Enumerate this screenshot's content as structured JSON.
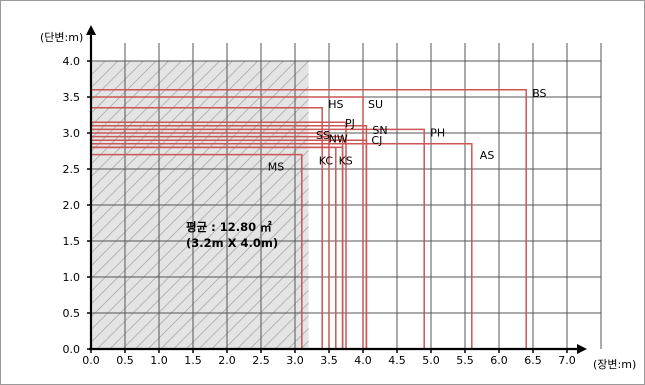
{
  "chart_data": {
    "type": "area",
    "xlabel": "(장변:m)",
    "ylabel": "(단변:m)",
    "xlim": [
      0,
      7.5
    ],
    "ylim": [
      0,
      4.25
    ],
    "x_ticks": [
      "0.0",
      "0.5",
      "1.0",
      "1.5",
      "2.0",
      "2.5",
      "3.0",
      "3.5",
      "4.0",
      "4.5",
      "5.0",
      "5.5",
      "6.0",
      "6.5",
      "7.0"
    ],
    "y_ticks": [
      "0.0",
      "0.5",
      "1.0",
      "1.5",
      "2.0",
      "2.5",
      "3.0",
      "3.5",
      "4.0"
    ],
    "grid": true,
    "series": [
      {
        "name": "BS",
        "x": 6.4,
        "y": 3.6
      },
      {
        "name": "SU",
        "x": 4.0,
        "y": 3.5
      },
      {
        "name": "HS",
        "x": 3.4,
        "y": 3.35
      },
      {
        "name": "PJ",
        "x": 3.75,
        "y": 3.15
      },
      {
        "name": "SN",
        "x": 4.05,
        "y": 3.1
      },
      {
        "name": "PH",
        "x": 4.9,
        "y": 3.05
      },
      {
        "name": "SS",
        "x": 3.5,
        "y": 3.0
      },
      {
        "name": "NW",
        "x": 3.7,
        "y": 2.95
      },
      {
        "name": "CJ",
        "x": 4.05,
        "y": 2.9
      },
      {
        "name": "AS",
        "x": 5.6,
        "y": 2.85
      },
      {
        "name": "KC",
        "x": 3.6,
        "y": 2.8
      },
      {
        "name": "KS",
        "x": 3.7,
        "y": 2.8
      },
      {
        "name": "MS",
        "x": 3.1,
        "y": 2.7
      }
    ],
    "average": {
      "x": 3.2,
      "y": 4.0
    },
    "annotation": {
      "line1": "평균 : 12.80 ㎡",
      "line2": "(3.2m  X 4.0m)"
    },
    "colors": {
      "series": "#cc5555",
      "grid": "#555555",
      "hatch": "#aaaaaa",
      "average_fill": "#e2e2e2"
    }
  }
}
